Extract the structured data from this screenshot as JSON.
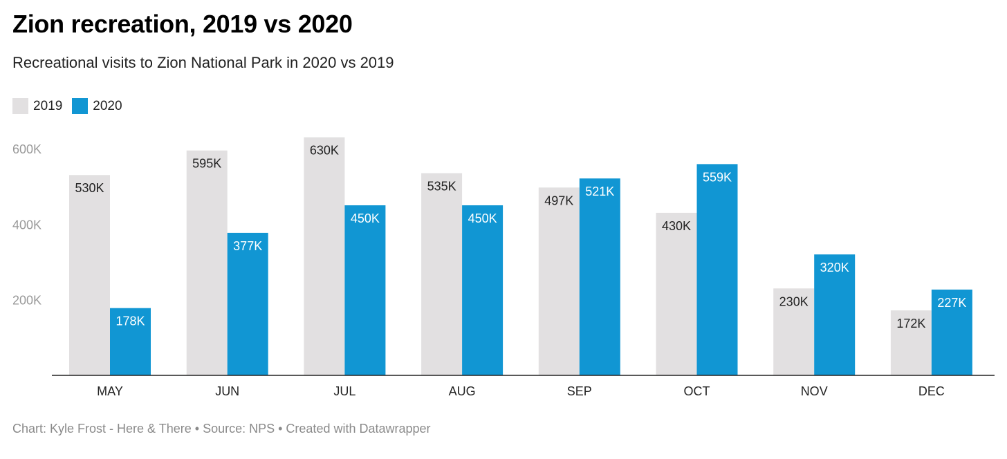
{
  "header": {
    "title": "Zion recreation, 2019 vs 2020",
    "subtitle": "Recreational visits to Zion National Park in 2020 vs 2019"
  },
  "footer": {
    "chart_credit": "Chart: Kyle Frost - Here & There",
    "source": "Source: NPS",
    "created": "Created with Datawrapper",
    "separator": " • "
  },
  "chart_data": {
    "type": "bar",
    "title": "Zion recreation, 2019 vs 2020",
    "subtitle": "Recreational visits to Zion National Park in 2020 vs 2019",
    "categories": [
      "MAY",
      "JUN",
      "JUL",
      "AUG",
      "SEP",
      "OCT",
      "NOV",
      "DEC"
    ],
    "series": [
      {
        "name": "2019",
        "color": "#e2e0e1",
        "label_color": "#222222",
        "values": [
          530,
          595,
          630,
          535,
          497,
          430,
          230,
          172
        ],
        "labels": [
          "530K",
          "595K",
          "630K",
          "535K",
          "497K",
          "430K",
          "230K",
          "172K"
        ]
      },
      {
        "name": "2020",
        "color": "#1196d3",
        "label_color": "#ffffff",
        "values": [
          178,
          377,
          450,
          450,
          521,
          559,
          320,
          227
        ],
        "labels": [
          "178K",
          "377K",
          "450K",
          "450K",
          "521K",
          "559K",
          "320K",
          "227K"
        ]
      }
    ],
    "unit": "thousands of visits",
    "ylim": [
      0,
      600
    ],
    "yticks": [
      200,
      400,
      600
    ],
    "ytick_labels": [
      "200K",
      "400K",
      "600K"
    ],
    "xlabel": "",
    "ylabel": "",
    "grid": false,
    "legend": "top-left"
  }
}
